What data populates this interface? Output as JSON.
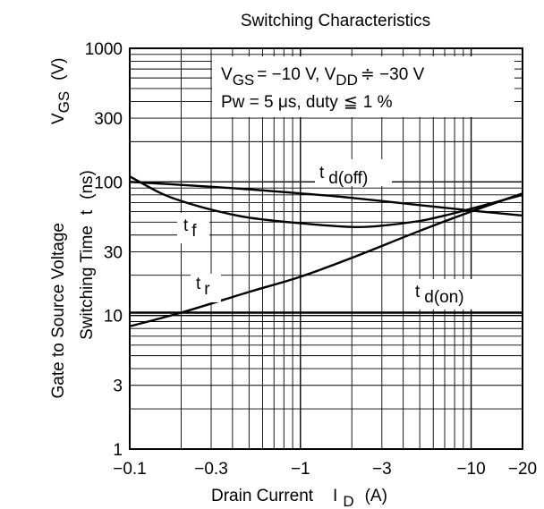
{
  "chart_data": {
    "type": "line",
    "title": "Switching Characteristics",
    "xlabel": "Drain Current",
    "xlabel_symbol": "I",
    "xlabel_sub": "D",
    "xlabel_unit": "(A)",
    "ylabel": "Switching Time",
    "ylabel_symbol": "t",
    "ylabel_unit": "(ns)",
    "ylabel_left": "Gate to Source Voltage",
    "ylabel_left_symbol": "V",
    "ylabel_left_sub": "GS",
    "ylabel_left_unit": "(V)",
    "x_scale": "log",
    "y_scale": "log",
    "xlim": [
      -0.1,
      -20
    ],
    "ylim": [
      1,
      1000
    ],
    "grid": true,
    "x_ticks": [
      {
        "value": -0.1,
        "label": "−0.1"
      },
      {
        "value": -0.3,
        "label": "−0.3"
      },
      {
        "value": -1,
        "label": "−1"
      },
      {
        "value": -3,
        "label": "−3"
      },
      {
        "value": -10,
        "label": "−10"
      },
      {
        "value": -20,
        "label": "−20"
      }
    ],
    "y_ticks": [
      {
        "value": 1,
        "label": "1"
      },
      {
        "value": 3,
        "label": "3"
      },
      {
        "value": 10,
        "label": "10"
      },
      {
        "value": 30,
        "label": "30"
      },
      {
        "value": 100,
        "label": "100"
      },
      {
        "value": 300,
        "label": "300"
      },
      {
        "value": 1000,
        "label": "1000"
      }
    ],
    "conditions": {
      "line1": {
        "a": "V",
        "b": "GS",
        "c": "= −10 V, V",
        "d": "DD",
        "e": "≑ −30 V"
      },
      "line2": {
        "a": "Pw = 5 μs, duty",
        "b": "≦",
        "c": "1 %"
      }
    },
    "series": [
      {
        "name": "t d(off)",
        "symbol": "t",
        "sub": "d(off)",
        "x": [
          -0.1,
          -0.2,
          -0.5,
          -1,
          -2,
          -5,
          -10,
          -20
        ],
        "y": [
          100,
          95,
          88,
          82,
          76,
          67,
          61,
          56
        ]
      },
      {
        "name": "t f",
        "symbol": "t",
        "sub": "f",
        "x": [
          -0.1,
          -0.15,
          -0.2,
          -0.3,
          -0.5,
          -1,
          -2,
          -3,
          -5,
          -7,
          -10,
          -20
        ],
        "y": [
          110,
          83,
          72,
          62,
          54,
          49,
          46,
          47,
          51,
          56,
          63,
          80
        ]
      },
      {
        "name": "t r",
        "symbol": "t",
        "sub": "r",
        "x": [
          -0.1,
          -0.2,
          -0.5,
          -1,
          -2,
          -5,
          -10,
          -20
        ],
        "y": [
          8.3,
          10.5,
          15,
          19.5,
          27,
          43,
          60,
          82
        ]
      },
      {
        "name": "t d(on)",
        "symbol": "t",
        "sub": "d(on)",
        "x": [
          -0.1,
          -20
        ],
        "y": [
          10.5,
          10.5
        ]
      }
    ]
  }
}
